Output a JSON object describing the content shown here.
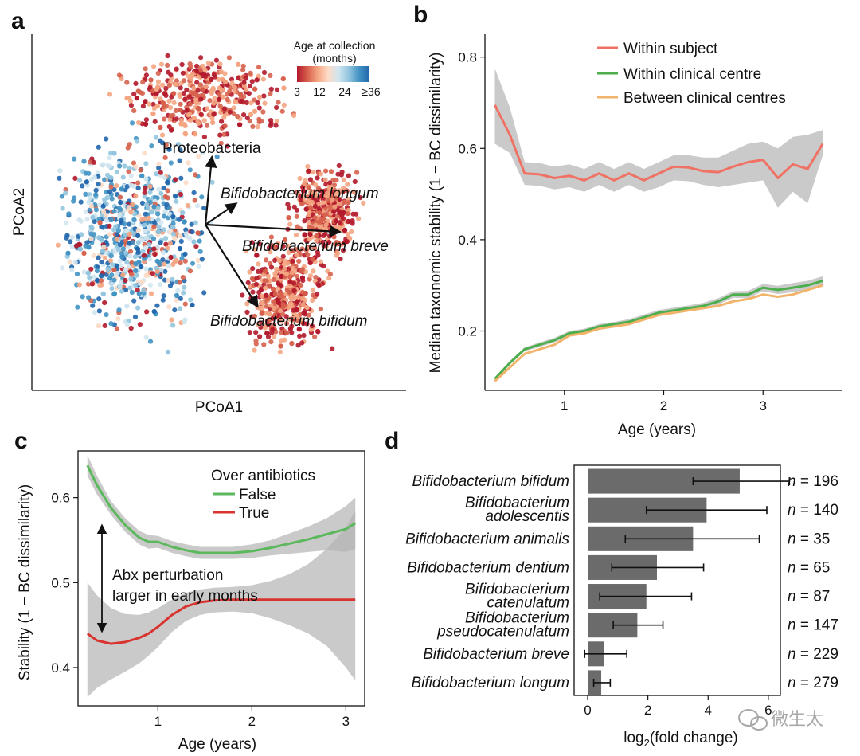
{
  "panels": {
    "a": {
      "label": "a",
      "xlabel": "PCoA1",
      "ylabel": "PCoA2",
      "colorbar": {
        "title_line1": "Age at collection",
        "title_line2": "(months)",
        "ticks": [
          "3",
          "12",
          "24",
          "≥36"
        ],
        "colors": [
          "#b2182b",
          "#d6604d",
          "#f4a582",
          "#fddbc7",
          "#d1e5f0",
          "#92c5de",
          "#4393c3",
          "#2166ac"
        ]
      },
      "arrows": [
        {
          "name": "Proteobacteria",
          "italic": false
        },
        {
          "name": "Bifidobacterium longum",
          "italic": true
        },
        {
          "name": "Bifidobacterium breve",
          "italic": true
        },
        {
          "name": "Bifidobacterium bifidum",
          "italic": true
        }
      ]
    },
    "b": {
      "label": "b",
      "legend": [
        "Within subject",
        "Within clinical centre",
        "Between clinical centres"
      ]
    },
    "c": {
      "label": "c",
      "annotation_line1": "Abx perturbation",
      "annotation_line2": "larger in early months"
    },
    "d": {
      "label": "d",
      "n_prefix": "n = "
    }
  },
  "chart_data": [
    {
      "id": "b",
      "type": "line",
      "xlabel": "Age (years)",
      "ylabel": "Median taxonomic stability (1 − BC dissimilarity)",
      "xlim": [
        0.2,
        3.8
      ],
      "ylim": [
        0.07,
        0.85
      ],
      "xticks": [
        1,
        2,
        3
      ],
      "yticks": [
        0.2,
        0.4,
        0.6,
        0.8
      ],
      "ytick_labels": [
        "0.2",
        "0.4",
        "0.6",
        "0.8"
      ],
      "x": [
        0.3,
        0.45,
        0.6,
        0.75,
        0.9,
        1.05,
        1.2,
        1.35,
        1.5,
        1.65,
        1.8,
        1.95,
        2.1,
        2.25,
        2.4,
        2.55,
        2.7,
        2.85,
        3.0,
        3.15,
        3.3,
        3.45,
        3.6
      ],
      "series": [
        {
          "name": "Within subject",
          "color": "#ef7264",
          "values": [
            0.695,
            0.63,
            0.545,
            0.543,
            0.535,
            0.54,
            0.53,
            0.545,
            0.53,
            0.545,
            0.53,
            0.545,
            0.56,
            0.558,
            0.55,
            0.548,
            0.56,
            0.57,
            0.575,
            0.535,
            0.565,
            0.555,
            0.61
          ],
          "band_upper": [
            0.775,
            0.69,
            0.57,
            0.568,
            0.56,
            0.565,
            0.555,
            0.57,
            0.555,
            0.57,
            0.555,
            0.57,
            0.585,
            0.585,
            0.58,
            0.58,
            0.595,
            0.61,
            0.615,
            0.6,
            0.625,
            0.63,
            0.64
          ],
          "band_lower": [
            0.61,
            0.59,
            0.52,
            0.518,
            0.51,
            0.515,
            0.505,
            0.52,
            0.505,
            0.52,
            0.505,
            0.515,
            0.53,
            0.528,
            0.52,
            0.515,
            0.52,
            0.525,
            0.53,
            0.47,
            0.505,
            0.48,
            0.585
          ]
        },
        {
          "name": "Within clinical centre",
          "color": "#4cae4c",
          "values": [
            0.095,
            0.13,
            0.16,
            0.17,
            0.18,
            0.195,
            0.2,
            0.21,
            0.215,
            0.22,
            0.23,
            0.24,
            0.245,
            0.25,
            0.255,
            0.265,
            0.28,
            0.28,
            0.295,
            0.29,
            0.295,
            0.3,
            0.31
          ],
          "band_upper": [
            0.099,
            0.134,
            0.164,
            0.175,
            0.185,
            0.2,
            0.205,
            0.215,
            0.22,
            0.226,
            0.236,
            0.246,
            0.251,
            0.256,
            0.262,
            0.272,
            0.287,
            0.288,
            0.303,
            0.299,
            0.305,
            0.31,
            0.32
          ],
          "band_lower": [
            0.091,
            0.126,
            0.156,
            0.165,
            0.175,
            0.19,
            0.195,
            0.205,
            0.21,
            0.214,
            0.224,
            0.234,
            0.239,
            0.244,
            0.248,
            0.258,
            0.273,
            0.272,
            0.287,
            0.281,
            0.285,
            0.29,
            0.3
          ]
        },
        {
          "name": "Between clinical centres",
          "color": "#f2b36b",
          "values": [
            0.09,
            0.12,
            0.15,
            0.16,
            0.17,
            0.19,
            0.195,
            0.205,
            0.21,
            0.215,
            0.225,
            0.235,
            0.24,
            0.245,
            0.25,
            0.255,
            0.265,
            0.27,
            0.28,
            0.275,
            0.28,
            0.29,
            0.3
          ]
        }
      ]
    },
    {
      "id": "c",
      "type": "line",
      "xlabel": "Age (years)",
      "ylabel": "Stability (1 − BC dissimilarity)",
      "legend_title": "Over antibiotics",
      "xlim": [
        0.15,
        3.2
      ],
      "ylim": [
        0.355,
        0.655
      ],
      "xticks": [
        1,
        2,
        3
      ],
      "yticks": [
        0.4,
        0.5,
        0.6
      ],
      "ytick_labels": [
        "0.4",
        "0.5",
        "0.6"
      ],
      "x": [
        0.25,
        0.35,
        0.5,
        0.65,
        0.8,
        0.9,
        1.0,
        1.15,
        1.3,
        1.45,
        1.6,
        1.8,
        2.0,
        2.2,
        2.4,
        2.6,
        2.8,
        3.0,
        3.1
      ],
      "series": [
        {
          "name": "False",
          "color": "#5cb85c",
          "values": [
            0.638,
            0.615,
            0.588,
            0.568,
            0.553,
            0.548,
            0.548,
            0.542,
            0.538,
            0.535,
            0.535,
            0.535,
            0.537,
            0.541,
            0.546,
            0.551,
            0.557,
            0.563,
            0.57
          ],
          "band_upper": [
            0.65,
            0.626,
            0.596,
            0.576,
            0.561,
            0.556,
            0.555,
            0.549,
            0.545,
            0.542,
            0.542,
            0.542,
            0.545,
            0.55,
            0.558,
            0.566,
            0.576,
            0.59,
            0.6
          ],
          "band_lower": [
            0.626,
            0.604,
            0.58,
            0.56,
            0.545,
            0.54,
            0.541,
            0.535,
            0.531,
            0.528,
            0.528,
            0.528,
            0.529,
            0.532,
            0.534,
            0.536,
            0.538,
            0.536,
            0.54
          ]
        },
        {
          "name": "True",
          "color": "#d9332f",
          "values": [
            0.44,
            0.432,
            0.428,
            0.43,
            0.435,
            0.44,
            0.448,
            0.462,
            0.472,
            0.477,
            0.479,
            0.48,
            0.48,
            0.48,
            0.48,
            0.48,
            0.48,
            0.48,
            0.48
          ],
          "band_upper": [
            0.5,
            0.485,
            0.47,
            0.463,
            0.462,
            0.465,
            0.47,
            0.48,
            0.488,
            0.492,
            0.494,
            0.495,
            0.497,
            0.502,
            0.51,
            0.522,
            0.54,
            0.565,
            0.585
          ],
          "band_lower": [
            0.365,
            0.376,
            0.386,
            0.395,
            0.405,
            0.414,
            0.424,
            0.442,
            0.455,
            0.462,
            0.465,
            0.466,
            0.464,
            0.458,
            0.45,
            0.44,
            0.425,
            0.4,
            0.385
          ]
        }
      ]
    },
    {
      "id": "d",
      "type": "bar",
      "orientation": "horizontal",
      "xlabel": "log2(fold change)",
      "xlim": [
        -0.45,
        6.4
      ],
      "xticks": [
        0,
        2,
        4,
        6
      ],
      "categories": [
        {
          "line1": "Bifidobacterium bifidum",
          "line2": ""
        },
        {
          "line1": "Bifidobacterium",
          "line2": "adolescentis"
        },
        {
          "line1": "Bifidobacterium animalis",
          "line2": ""
        },
        {
          "line1": "Bifidobacterium dentium",
          "line2": ""
        },
        {
          "line1": "Bifidobacterium",
          "line2": "catenulatum"
        },
        {
          "line1": "Bifidobacterium",
          "line2": "pseudocatenulatum"
        },
        {
          "line1": "Bifidobacterium breve",
          "line2": ""
        },
        {
          "line1": "Bifidobacterium longum",
          "line2": ""
        }
      ],
      "values": [
        5.05,
        3.95,
        3.5,
        2.3,
        1.95,
        1.65,
        0.55,
        0.45
      ],
      "err_low": [
        3.5,
        1.95,
        1.25,
        0.8,
        0.4,
        0.85,
        -0.1,
        0.2
      ],
      "err_high": [
        6.7,
        5.95,
        5.7,
        3.85,
        3.45,
        2.5,
        1.3,
        0.75
      ],
      "n": [
        196,
        140,
        35,
        65,
        87,
        147,
        229,
        279
      ],
      "bar_color": "#6b6b6b"
    }
  ],
  "watermark": {
    "text": "微生太",
    "icon": "wechat-icon"
  }
}
